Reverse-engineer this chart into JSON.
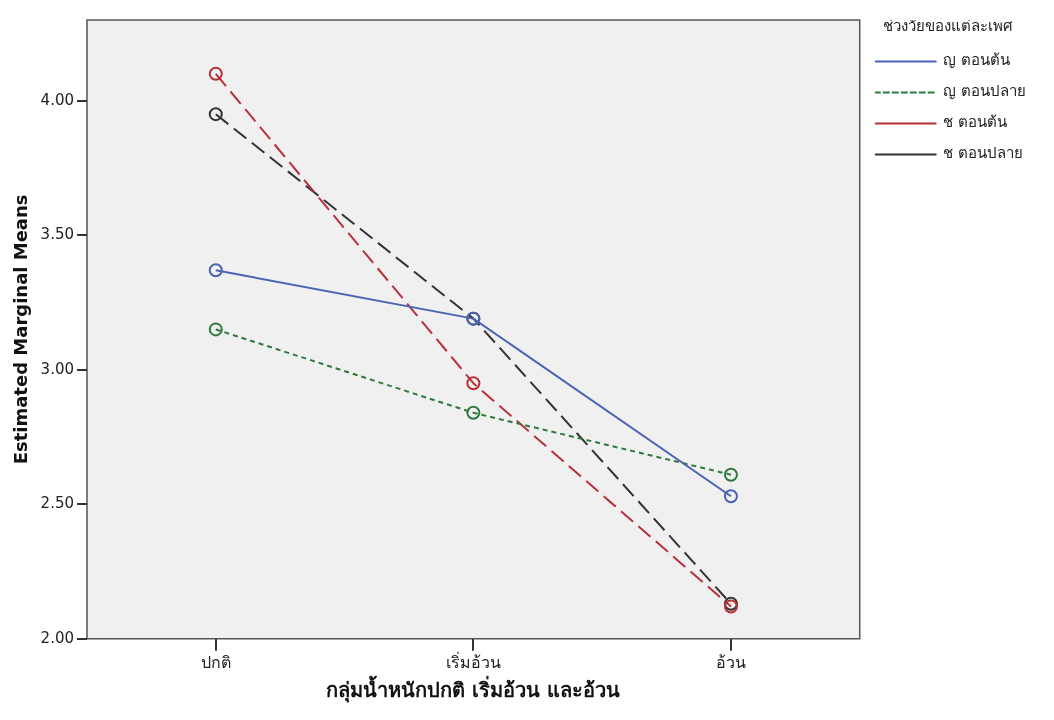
{
  "chart_data": {
    "type": "line",
    "xlabel": "กลุ่มน้ำหนักปกติ เริ่มอ้วน และอ้วน",
    "ylabel": "Estimated Marginal Means",
    "legend_title": "ช่วงวัยของแต่ละเพศ",
    "legend": "right",
    "marker": "circle",
    "grid": false,
    "categories": [
      "ปกติ",
      "เริ่มอ้วน",
      "อ้วน"
    ],
    "ylim": [
      2.0,
      4.3
    ],
    "yticks": [
      {
        "value": 2,
        "label": "2.00"
      },
      {
        "value": 2.5,
        "label": "2.50"
      },
      {
        "value": 3,
        "label": "3.00"
      },
      {
        "value": 3.5,
        "label": "3.50"
      },
      {
        "value": 4,
        "label": "4.00"
      }
    ],
    "series": [
      {
        "name": "ญ ตอนต้น",
        "color": "#4a63b4",
        "line_style": "solid",
        "values": [
          3.37,
          3.19,
          2.53
        ]
      },
      {
        "name": "ญ ตอนปลาย",
        "color": "#2e7a3e",
        "line_style": "dotted",
        "values": [
          3.15,
          2.84,
          2.61
        ]
      },
      {
        "name": "ช ตอนต้น",
        "color": "#b8303a",
        "line_style": "dashed",
        "values": [
          4.1,
          2.95,
          2.12
        ]
      },
      {
        "name": "ช ตอนปลาย",
        "color": "#333333",
        "line_style": "dashed",
        "values": [
          3.95,
          3.19,
          2.13
        ]
      }
    ]
  }
}
